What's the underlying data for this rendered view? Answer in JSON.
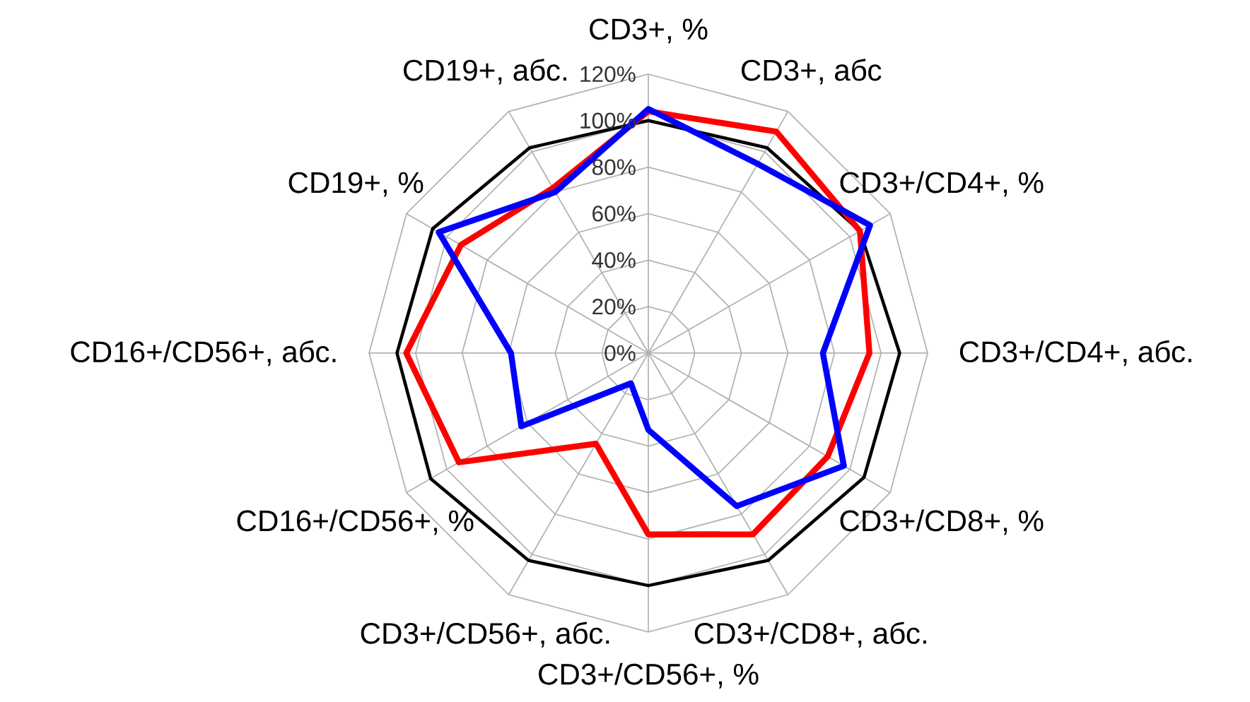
{
  "chart_data": {
    "type": "radar",
    "categories": [
      "CD3+, %",
      "CD3+, абс",
      "CD3+/CD4+, %",
      "CD3+/CD4+, абс.",
      "CD3+/CD8+, %",
      "CD3+/CD8+, абс.",
      "CD3+/CD56+, %",
      "CD3+/CD56+, абс.",
      "CD16+/CD56+, %",
      "CD16+/CD56+, абс.",
      "CD19+, %",
      "CD19+, абс."
    ],
    "series": [
      {
        "color": "#000000",
        "values": [
          100,
          102,
          105,
          108,
          107,
          103,
          100,
          103,
          108,
          108,
          107,
          102
        ]
      },
      {
        "color": "#ff0000",
        "values": [
          104,
          110,
          105,
          95,
          89,
          90,
          78,
          45,
          94,
          104,
          93,
          82
        ]
      },
      {
        "color": "#0000ff",
        "values": [
          105,
          94,
          110,
          75,
          97,
          76,
          33,
          15,
          63,
          59,
          104,
          80
        ]
      }
    ],
    "ylim": [
      0,
      120
    ],
    "yticks": [
      {
        "value": 0,
        "label": "0%"
      },
      {
        "value": 20,
        "label": "20%"
      },
      {
        "value": 40,
        "label": "40%"
      },
      {
        "value": 60,
        "label": "60%"
      },
      {
        "value": 80,
        "label": "80%"
      },
      {
        "value": 100,
        "label": "100%"
      },
      {
        "value": 120,
        "label": "120%"
      }
    ],
    "grid": true
  }
}
